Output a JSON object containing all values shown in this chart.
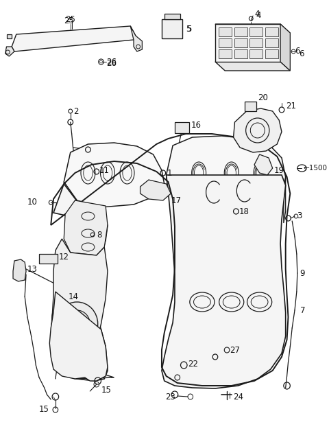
{
  "bg": "#ffffff",
  "lc": "#1a1a1a",
  "fig_w": 4.8,
  "fig_h": 6.28,
  "dpi": 100,
  "label_fs": 8.5,
  "label_color": "#111111"
}
